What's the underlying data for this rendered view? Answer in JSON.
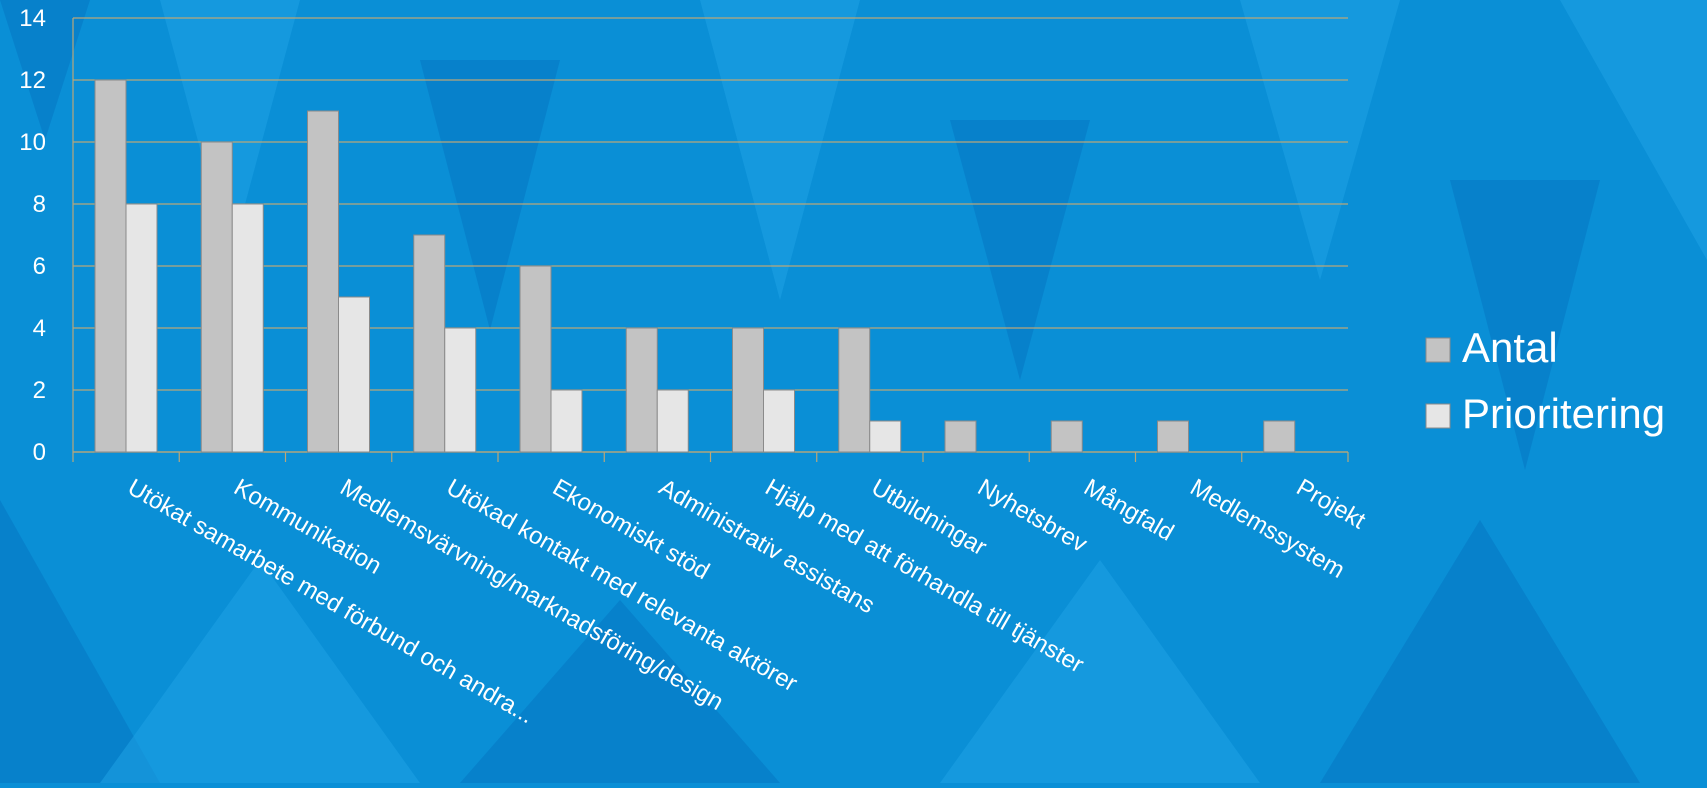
{
  "colors": {
    "background": "#0a8fd6",
    "background_dark": "#0676c2",
    "background_light": "#1fa3e6",
    "series_antal": "#c3c3c3",
    "series_prioritering": "#e6e6e6",
    "bar_stroke": "#8a8a8a",
    "gridline": "#b9a77a",
    "text": "#ffffff"
  },
  "chart_data": {
    "type": "bar",
    "title": "",
    "xlabel": "",
    "ylabel": "",
    "ylim": [
      0,
      14
    ],
    "yticks": [
      0,
      2,
      4,
      6,
      8,
      10,
      12,
      14
    ],
    "grid": true,
    "legend_position": "right",
    "categories": [
      "Utökat samarbete med förbund och andra...",
      "Kommunikation",
      "Medlemsvärvning/marknadsföring/design",
      "Utökad kontakt med relevanta aktörer",
      "Ekonomiskt stöd",
      "Administrativ assistans",
      "Hjälp med att förhandla till tjänster",
      "Utbildningar",
      "Nyhetsbrev",
      "Mångfald",
      "Medlemssystem",
      "Projekt"
    ],
    "series": [
      {
        "name": "Antal",
        "values": [
          12,
          10,
          11,
          7,
          6,
          4,
          4,
          4,
          1,
          1,
          1,
          1
        ]
      },
      {
        "name": "Prioritering",
        "values": [
          8,
          8,
          5,
          4,
          2,
          2,
          2,
          1,
          0,
          0,
          0,
          0
        ]
      }
    ]
  }
}
